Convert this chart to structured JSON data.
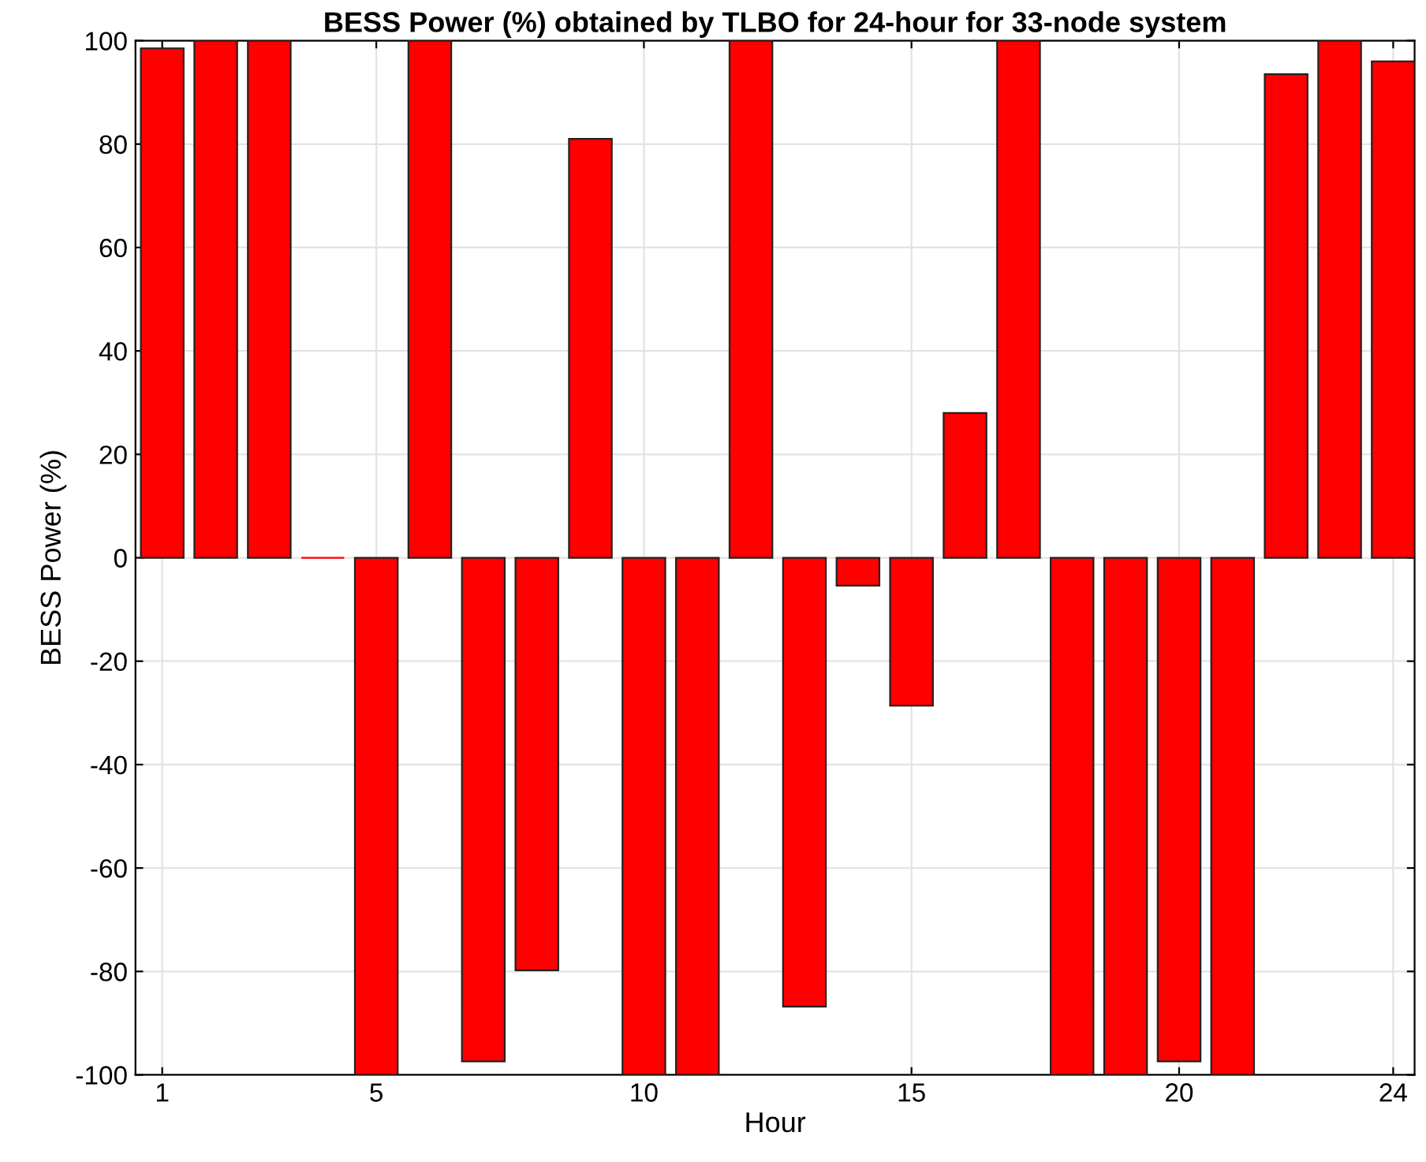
{
  "chart_data": {
    "type": "bar",
    "title": "BESS Power (%) obtained by TLBO for 24-hour for 33-node system",
    "xlabel": "Hour",
    "ylabel": "BESS Power (%)",
    "x": [
      1,
      2,
      3,
      4,
      5,
      6,
      7,
      8,
      9,
      10,
      11,
      12,
      13,
      14,
      15,
      16,
      17,
      18,
      19,
      20,
      21,
      22,
      23,
      24
    ],
    "values": [
      98.5,
      100,
      100,
      0,
      -100,
      100,
      -97.4,
      -79.8,
      81,
      -100,
      -100,
      100,
      -86.8,
      -5.4,
      -28.6,
      28,
      100,
      -100,
      -100,
      -97.4,
      -100,
      93.5,
      100,
      96
    ],
    "color": "#ff0000",
    "xlim": [
      0.5,
      24.4
    ],
    "xticks": [
      1,
      5,
      10,
      15,
      20,
      24
    ],
    "ylim": [
      -100,
      100
    ],
    "yticks": [
      -100,
      -80,
      -60,
      -40,
      -20,
      0,
      20,
      40,
      60,
      80,
      100
    ],
    "grid": true
  }
}
